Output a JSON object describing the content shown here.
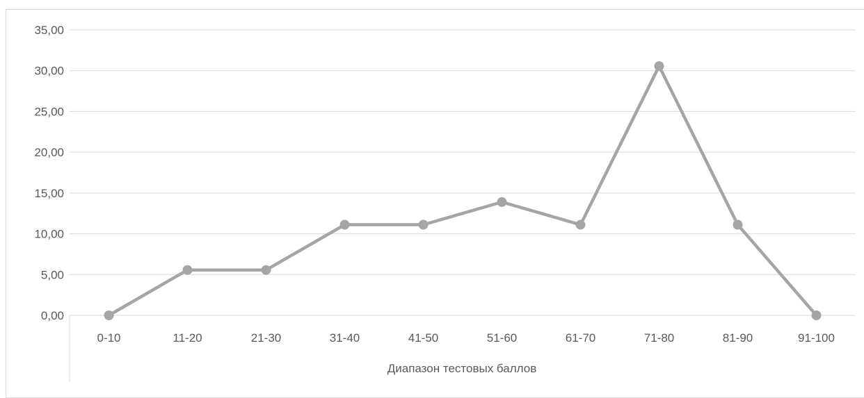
{
  "chart_data": {
    "type": "line",
    "categories": [
      "0-10",
      "11-20",
      "21-30",
      "31-40",
      "41-50",
      "51-60",
      "61-70",
      "71-80",
      "81-90",
      "91-100"
    ],
    "series": [
      {
        "values": [
          0.0,
          5.56,
          5.56,
          11.11,
          11.11,
          13.89,
          11.11,
          30.56,
          11.11,
          0.0
        ]
      }
    ],
    "xlabel": "Диапазон тестовых баллов",
    "ylabel": "",
    "ylim": [
      0,
      35
    ],
    "yticks": [
      "0,00",
      "5,00",
      "10,00",
      "15,00",
      "20,00",
      "25,00",
      "30,00",
      "35,00"
    ],
    "grid": true,
    "legend": "none",
    "colors": {
      "line": "#a5a5a5",
      "grid": "#d9d9d9",
      "text": "#595959"
    }
  }
}
